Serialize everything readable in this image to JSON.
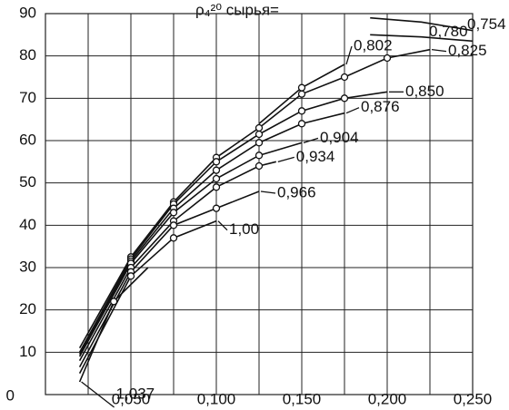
{
  "chart_data": {
    "type": "line",
    "annotation": "ρ₄²⁰ сырья=",
    "xlim": [
      0,
      0.25
    ],
    "xticks": [
      {
        "value": 0.05,
        "label": "0,050"
      },
      {
        "value": 0.1,
        "label": "0,100"
      },
      {
        "value": 0.15,
        "label": "0,150"
      },
      {
        "value": 0.2,
        "label": "0,200"
      },
      {
        "value": 0.25,
        "label": "0,250"
      }
    ],
    "xminor": [
      0.025,
      0.075,
      0.125,
      0.175,
      0.225
    ],
    "ylim": [
      0,
      90
    ],
    "yticks": [
      0,
      10,
      20,
      30,
      40,
      50,
      60,
      70,
      80,
      90
    ],
    "grid": true,
    "color": "#111111",
    "series": [
      {
        "name": "0,754",
        "x": [
          0.19,
          0.22,
          0.25
        ],
        "values": [
          89,
          88,
          86
        ]
      },
      {
        "name": "0,780",
        "x": [
          0.19,
          0.22,
          0.25
        ],
        "values": [
          85,
          84.5,
          83.5
        ]
      },
      {
        "name": "0,802",
        "x": [
          0.125,
          0.15,
          0.175
        ],
        "values": [
          64,
          72.5,
          78
        ]
      },
      {
        "name": "0,825",
        "x": [
          0.02,
          0.05,
          0.075,
          0.1,
          0.125,
          0.15,
          0.175,
          0.2,
          0.225
        ],
        "values": [
          11,
          32.5,
          45.5,
          56,
          63,
          71,
          75,
          79.5,
          81.5
        ]
      },
      {
        "name": "0,850",
        "x": [
          0.02,
          0.05,
          0.075,
          0.1,
          0.125,
          0.15,
          0.175,
          0.2
        ],
        "values": [
          10,
          32,
          45,
          55,
          61.5,
          67,
          70,
          71.5
        ]
      },
      {
        "name": "0,876",
        "x": [
          0.02,
          0.05,
          0.075,
          0.1,
          0.125,
          0.15,
          0.175
        ],
        "values": [
          9.5,
          31.5,
          44,
          53,
          59.5,
          64,
          66.5
        ]
      },
      {
        "name": "0,904",
        "x": [
          0.02,
          0.05,
          0.075,
          0.1,
          0.125,
          0.15
        ],
        "values": [
          9,
          31,
          43,
          51,
          56.5,
          59.5
        ]
      },
      {
        "name": "0,934",
        "x": [
          0.02,
          0.05,
          0.075,
          0.1,
          0.125,
          0.135
        ],
        "values": [
          8,
          30,
          41,
          49,
          54,
          55
        ]
      },
      {
        "name": "0,966",
        "x": [
          0.02,
          0.05,
          0.075,
          0.1,
          0.125
        ],
        "values": [
          6.5,
          29,
          40,
          44,
          48
        ]
      },
      {
        "name": "1,00",
        "x": [
          0.02,
          0.05,
          0.075,
          0.1
        ],
        "values": [
          5,
          28,
          37,
          41
        ]
      },
      {
        "name": "1,037",
        "x": [
          0.02,
          0.04,
          0.06
        ],
        "values": [
          3,
          22,
          30
        ]
      }
    ]
  }
}
